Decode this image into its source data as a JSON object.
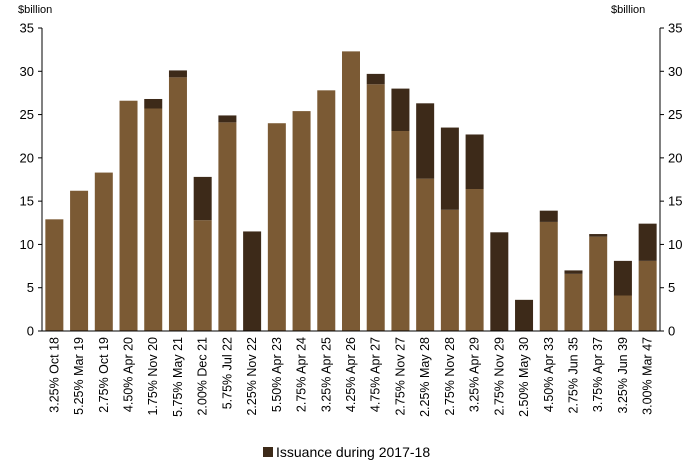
{
  "chart_data": {
    "type": "bar",
    "stacked": true,
    "left_unit": "$billion",
    "right_unit": "$billion",
    "ylim": [
      0,
      35
    ],
    "yticks": [
      0,
      5,
      10,
      15,
      20,
      25,
      30,
      35
    ],
    "grid": false,
    "legend_position": "bottom",
    "colors": {
      "base": "#7b5a34",
      "issuance": "#3d2a19",
      "axis": "#000000"
    },
    "categories": [
      "3.25% Oct 18",
      "5.25% Mar 19",
      "2.75% Oct 19",
      "4.50% Apr 20",
      "1.75% Nov 20",
      "5.75% May 21",
      "2.00% Dec 21",
      "5.75% Jul 22",
      "2.25% Nov 22",
      "5.50% Apr 23",
      "2.75% Apr 24",
      "3.25% Apr 25",
      "4.25% Apr 26",
      "4.75% Apr 27",
      "2.75% Nov 27",
      "2.25% May 28",
      "2.75% Nov 28",
      "3.25% Apr 29",
      "2.75% Nov 29",
      "2.50% May 30",
      "4.50% Apr 33",
      "2.75% Jun 35",
      "3.75% Apr 37",
      "3.25% Jun 39",
      "3.00% Mar 47"
    ],
    "series": [
      {
        "values": [
          12.9,
          16.2,
          18.3,
          26.6,
          25.7,
          29.3,
          12.8,
          24.1,
          0,
          24.0,
          25.4,
          27.8,
          32.3,
          28.5,
          23.1,
          17.6,
          14.0,
          16.4,
          0,
          0,
          12.6,
          6.6,
          10.9,
          4.1,
          8.1
        ]
      },
      {
        "name": "Issuance during 2017-18",
        "values": [
          0,
          0,
          0,
          0,
          1.1,
          0.8,
          5.0,
          0.8,
          11.5,
          0,
          0,
          0,
          0,
          1.2,
          4.9,
          8.7,
          9.5,
          6.3,
          11.4,
          3.6,
          1.3,
          0.4,
          0.3,
          4.0,
          4.3
        ]
      }
    ]
  }
}
